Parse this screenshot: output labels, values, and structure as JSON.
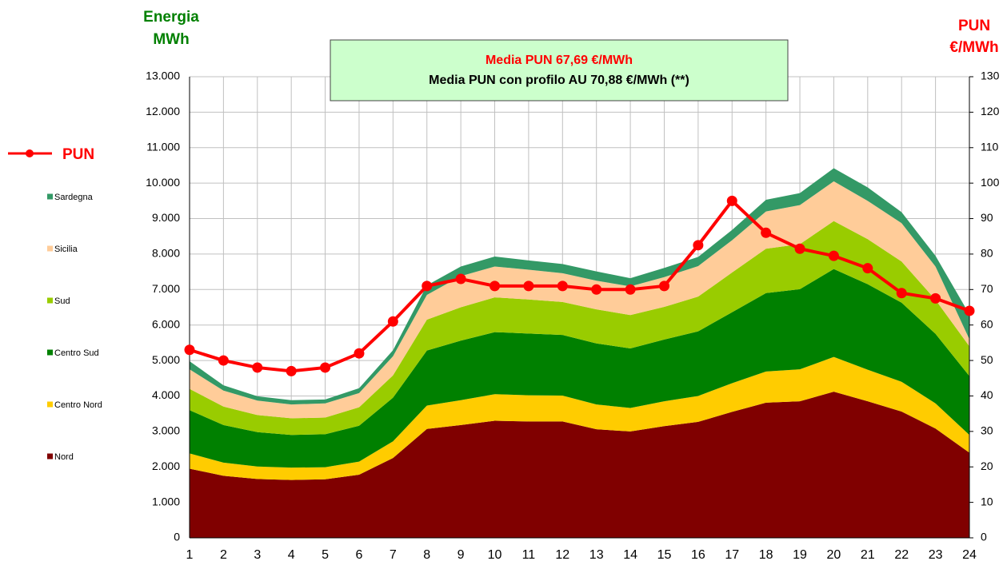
{
  "chart_data": {
    "type": "stacked-area-line",
    "ylabel": [
      "Energia",
      "MWh"
    ],
    "y2label": [
      "PUN",
      "€/MWh"
    ],
    "annotations": [
      "Media PUN 67,69  €/MWh",
      "Media PUN con profilo AU 70,88 €/MWh (**)"
    ],
    "categories": [
      "1",
      "2",
      "3",
      "4",
      "5",
      "6",
      "7",
      "8",
      "9",
      "10",
      "11",
      "12",
      "13",
      "14",
      "15",
      "16",
      "17",
      "18",
      "19",
      "20",
      "21",
      "22",
      "23",
      "24"
    ],
    "series": [
      {
        "name": "Nord",
        "color": "#800000",
        "values": [
          1950,
          1750,
          1660,
          1630,
          1650,
          1780,
          2250,
          3070,
          3180,
          3300,
          3280,
          3280,
          3060,
          3000,
          3150,
          3270,
          3550,
          3810,
          3850,
          4120,
          3850,
          3560,
          3080,
          2400
        ]
      },
      {
        "name": "Centro Nord",
        "color": "#ffcc00",
        "values": [
          430,
          370,
          350,
          350,
          340,
          370,
          470,
          660,
          700,
          750,
          740,
          730,
          700,
          660,
          700,
          730,
          810,
          880,
          900,
          980,
          890,
          840,
          710,
          500
        ]
      },
      {
        "name": "Centro Sud",
        "color": "#008000",
        "values": [
          1220,
          1060,
          970,
          920,
          930,
          1010,
          1230,
          1550,
          1680,
          1750,
          1740,
          1710,
          1720,
          1680,
          1740,
          1820,
          2000,
          2210,
          2260,
          2480,
          2410,
          2230,
          1960,
          1660
        ]
      },
      {
        "name": "Sud",
        "color": "#99cc00",
        "values": [
          600,
          520,
          480,
          470,
          470,
          520,
          630,
          870,
          940,
          980,
          960,
          930,
          960,
          940,
          920,
          980,
          1120,
          1250,
          1270,
          1350,
          1270,
          1160,
          960,
          840
        ]
      },
      {
        "name": "Sicilia",
        "color": "#ffcc99",
        "values": [
          550,
          450,
          410,
          390,
          400,
          400,
          540,
          700,
          880,
          870,
          840,
          810,
          810,
          810,
          840,
          860,
          910,
          1050,
          1100,
          1120,
          1080,
          1080,
          940,
          200
        ]
      },
      {
        "name": "Sardegna",
        "color": "#339966",
        "values": [
          230,
          150,
          120,
          120,
          110,
          140,
          170,
          270,
          270,
          280,
          260,
          260,
          260,
          230,
          260,
          260,
          290,
          330,
          340,
          370,
          380,
          310,
          300,
          700
        ]
      },
      {
        "name": "PUN",
        "color": "#ff0000",
        "axis": "y2",
        "values": [
          53,
          50,
          48,
          47,
          48,
          52,
          61,
          71,
          73,
          71,
          71,
          71,
          70,
          70,
          71,
          82.5,
          95,
          86,
          81.5,
          79.5,
          76,
          69,
          67.5,
          64
        ]
      }
    ],
    "ylim": [
      0,
      13000
    ],
    "yticks": [
      0,
      {
        "value": 1000,
        "label": "1.000"
      },
      {
        "value": 2000,
        "label": "2.000"
      },
      {
        "value": 3000,
        "label": "3.000"
      },
      {
        "value": 4000,
        "label": "4.000"
      },
      {
        "value": 5000,
        "label": "5.000"
      },
      {
        "value": 6000,
        "label": "6.000"
      },
      {
        "value": 7000,
        "label": "7.000"
      },
      {
        "value": 8000,
        "label": "8.000"
      },
      {
        "value": 9000,
        "label": "9.000"
      },
      {
        "value": 10000,
        "label": "10.000"
      },
      {
        "value": 11000,
        "label": "11.000"
      },
      {
        "value": 12000,
        "label": "12.000"
      },
      {
        "value": 13000,
        "label": "13.000"
      }
    ],
    "y2lim": [
      0,
      130
    ],
    "y2ticks": [
      0,
      10,
      20,
      30,
      40,
      50,
      60,
      70,
      80,
      90,
      100,
      110,
      120,
      130
    ],
    "grid": true,
    "legend": "left"
  }
}
